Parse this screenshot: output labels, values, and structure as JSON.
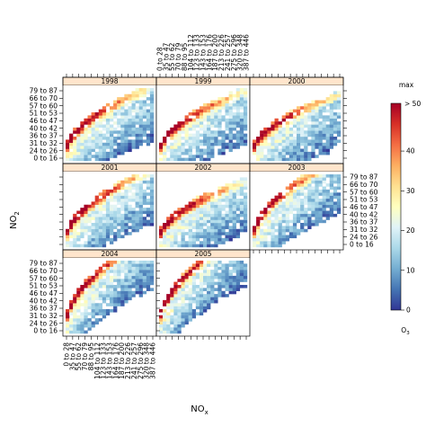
{
  "chart_data": {
    "type": "heatmap",
    "layout": "trellis",
    "panels": [
      "1998",
      "1999",
      "2000",
      "2001",
      "2002",
      "2003",
      "2004",
      "2005"
    ],
    "x_title": "NOx",
    "y_title": "NO2",
    "x_categories": [
      "0 to 28",
      "35 to 47",
      "55 to 62",
      "70 to 79",
      "88 to 95",
      "104 to 112",
      "123 to 133",
      "143 to 153",
      "164 to 176",
      "187 to 200",
      "213 to 226",
      "241 to 257",
      "275 to 296",
      "320 to 348",
      "387 to 446"
    ],
    "y_categories": [
      "0 to 16",
      "24 to 26",
      "31 to 32",
      "36 to 37",
      "40 to 42",
      "46 to 47",
      "51 to 53",
      "57 to 60",
      "66 to 70",
      "79 to 87"
    ],
    "colorbar": {
      "title": "O3",
      "max_label": "max",
      "gt_label": "> 50",
      "ticks": [
        0,
        10,
        20,
        30,
        40
      ],
      "range": [
        0,
        52
      ],
      "colors": [
        "#313695",
        "#4575b4",
        "#74add1",
        "#abd9e9",
        "#e0f3f8",
        "#ffffbf",
        "#fee090",
        "#fdae61",
        "#f46d43",
        "#d73027",
        "#a50026"
      ]
    }
  }
}
